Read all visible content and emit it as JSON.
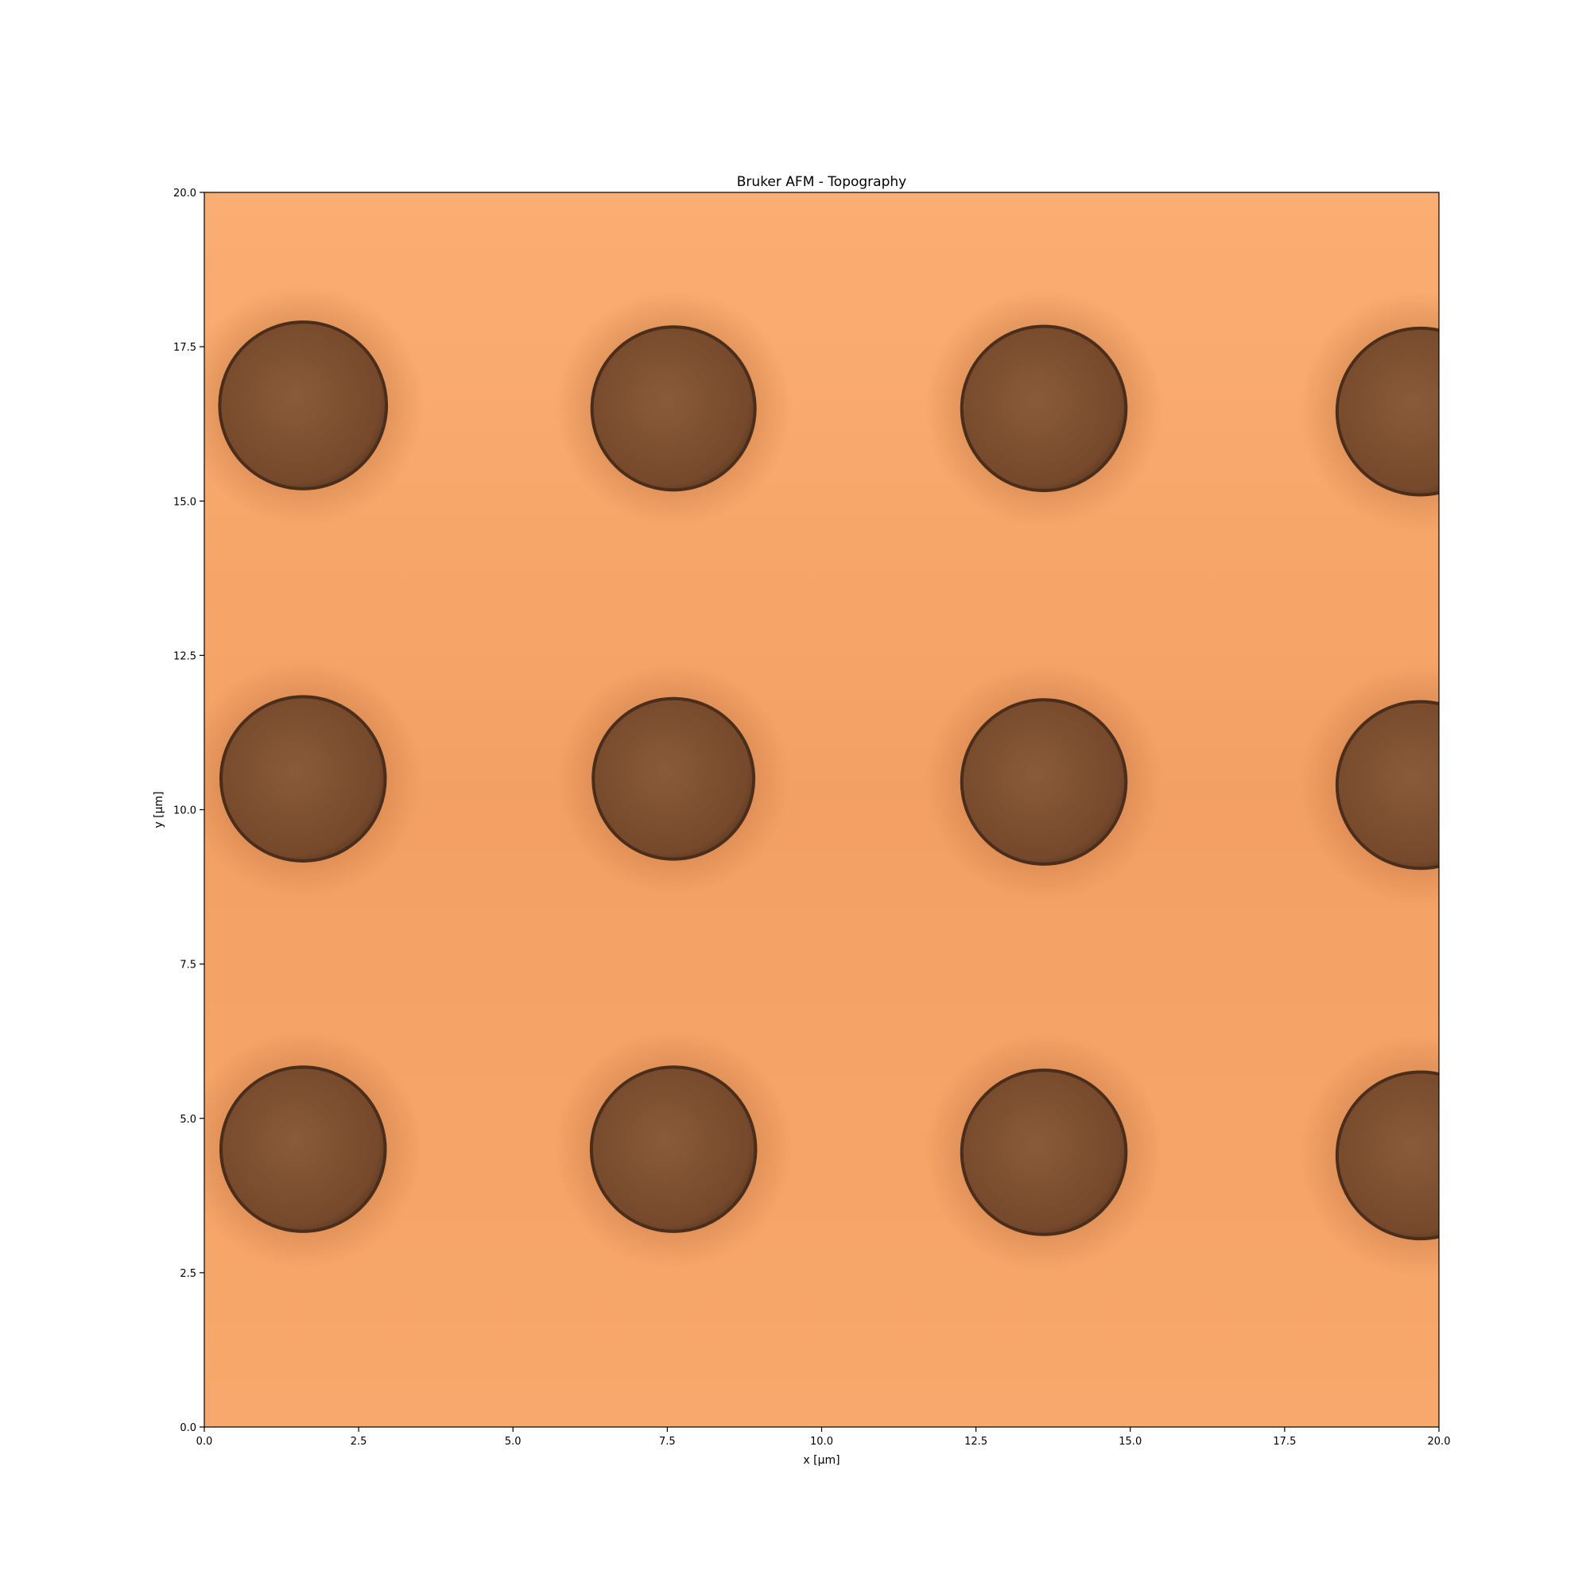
{
  "chart_data": {
    "type": "heatmap",
    "title": "Bruker AFM - Topography",
    "xlabel": "x [μm]",
    "ylabel": "y [μm]",
    "xlim": [
      0.0,
      20.0
    ],
    "ylim": [
      0.0,
      20.0
    ],
    "xticks": [
      "0.0",
      "2.5",
      "5.0",
      "7.5",
      "10.0",
      "12.5",
      "15.0",
      "17.5",
      "20.0"
    ],
    "yticks": [
      "0.0",
      "2.5",
      "5.0",
      "7.5",
      "10.0",
      "12.5",
      "15.0",
      "17.5",
      "20.0"
    ],
    "colormap": "copper",
    "colors": {
      "background_high": "#fbae72",
      "background_mid": "#f5a064",
      "pillar_fill": "#7e5233",
      "pillar_edge": "#4a2e1b",
      "shadow": "#d98a52"
    },
    "grid": false,
    "colorbar": false,
    "features": [
      {
        "name": "disk",
        "x": 1.6,
        "y": 16.55,
        "r": 1.35
      },
      {
        "name": "disk",
        "x": 7.6,
        "y": 16.5,
        "r": 1.32
      },
      {
        "name": "disk",
        "x": 13.6,
        "y": 16.5,
        "r": 1.33
      },
      {
        "name": "disk",
        "x": 19.7,
        "y": 16.45,
        "r": 1.35
      },
      {
        "name": "disk",
        "x": 1.6,
        "y": 10.5,
        "r": 1.33
      },
      {
        "name": "disk",
        "x": 7.6,
        "y": 10.5,
        "r": 1.3
      },
      {
        "name": "disk",
        "x": 13.6,
        "y": 10.45,
        "r": 1.33
      },
      {
        "name": "disk",
        "x": 19.7,
        "y": 10.4,
        "r": 1.35
      },
      {
        "name": "disk",
        "x": 1.6,
        "y": 4.5,
        "r": 1.33
      },
      {
        "name": "disk",
        "x": 7.6,
        "y": 4.5,
        "r": 1.33
      },
      {
        "name": "disk",
        "x": 13.6,
        "y": 4.45,
        "r": 1.33
      },
      {
        "name": "disk",
        "x": 19.7,
        "y": 4.4,
        "r": 1.35
      }
    ]
  }
}
